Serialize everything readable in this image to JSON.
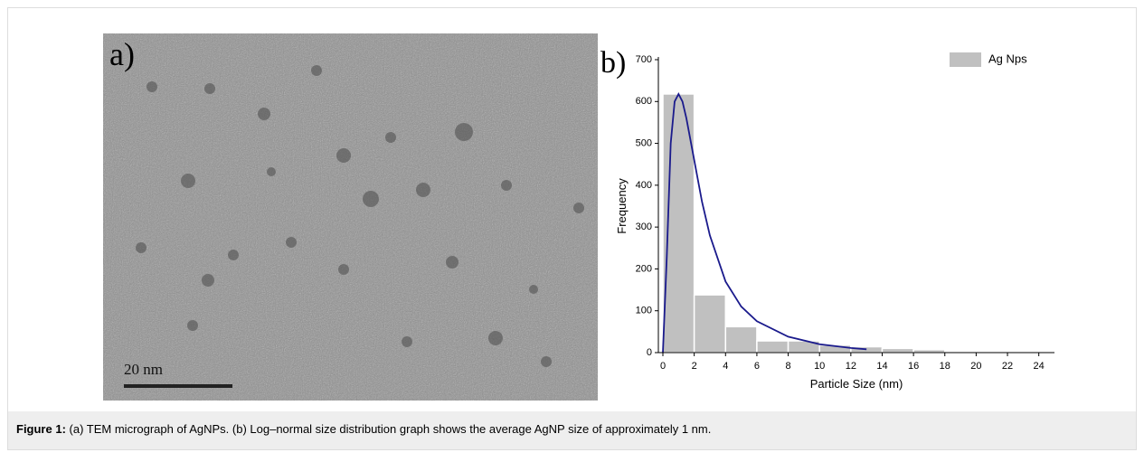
{
  "figure": {
    "caption_label": "Figure 1:",
    "caption_text": "(a) TEM micrograph of AgNPs. (b) Log–normal size distribution graph shows the average AgNP size of approximately 1 nm."
  },
  "image": {
    "label": "a)",
    "scale_bar": "20 nm"
  },
  "chart_data": {
    "type": "histogram",
    "label": "b)",
    "xlabel": "Particle Size (nm)",
    "ylabel": "Frequency",
    "bins": [
      0,
      2,
      4,
      6,
      8,
      10,
      12,
      14,
      16,
      18
    ],
    "series": [
      {
        "name": "Ag Nps",
        "color": "#c0c0c0",
        "values": [
          618,
          138,
          62,
          28,
          28,
          18,
          14,
          10,
          7
        ]
      }
    ],
    "fit": {
      "color": "#1a1a8c",
      "x": [
        0,
        0.25,
        0.5,
        0.75,
        1,
        1.25,
        1.5,
        2,
        2.5,
        3,
        4,
        5,
        6,
        8,
        10,
        12,
        13
      ],
      "values": [
        0,
        230,
        500,
        600,
        618,
        600,
        560,
        460,
        360,
        280,
        170,
        110,
        75,
        38,
        20,
        11,
        8
      ]
    },
    "xlim": [
      0,
      25
    ],
    "ylim": [
      0,
      700
    ],
    "xticks": [
      0,
      2,
      4,
      6,
      8,
      10,
      12,
      14,
      16,
      18,
      20,
      22,
      24
    ],
    "yticks": [
      0,
      100,
      200,
      300,
      400,
      500,
      600,
      700
    ],
    "legend": "top-right"
  }
}
